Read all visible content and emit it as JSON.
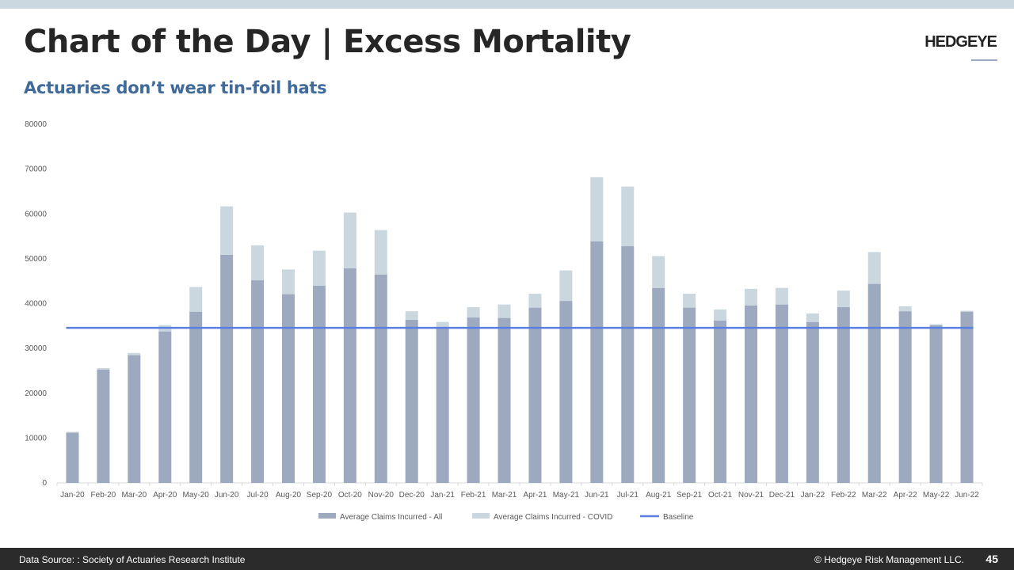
{
  "header": {
    "title": "Chart of the Day | Excess Mortality",
    "subtitle": "Actuaries don’t wear tin-foil hats",
    "logo": "HEDGEYE"
  },
  "footer": {
    "source": "Data Source: : Society of Actuaries Research Institute",
    "copyright": "© Hedgeye Risk Management LLC.",
    "page": "45"
  },
  "chart_data": {
    "type": "bar",
    "stacked": true,
    "title": "",
    "xlabel": "",
    "ylabel": "",
    "ylim": [
      0,
      80000
    ],
    "yticks": [
      0,
      10000,
      20000,
      30000,
      40000,
      50000,
      60000,
      70000,
      80000
    ],
    "grid": false,
    "legend": "bottom",
    "categories": [
      "Jan-20",
      "Feb-20",
      "Mar-20",
      "Apr-20",
      "May-20",
      "Jun-20",
      "Jul-20",
      "Aug-20",
      "Sep-20",
      "Oct-20",
      "Nov-20",
      "Dec-20",
      "Jan-21",
      "Feb-21",
      "Mar-21",
      "Apr-21",
      "May-21",
      "Jun-21",
      "Jul-21",
      "Aug-21",
      "Sep-21",
      "Oct-21",
      "Nov-21",
      "Dec-21",
      "Jan-22",
      "Feb-22",
      "Mar-22",
      "Apr-22",
      "May-22",
      "Jun-22"
    ],
    "series": [
      {
        "name": "Average Claims Incurred - All",
        "color": "#9da9bf",
        "values": [
          11200,
          25300,
          28500,
          33800,
          38200,
          50900,
          45200,
          42100,
          44000,
          47900,
          46500,
          36400,
          34700,
          36900,
          36800,
          39100,
          40600,
          53900,
          52800,
          43500,
          39100,
          36200,
          39600,
          39800,
          35900,
          39200,
          44400,
          38300,
          35200,
          38200
        ]
      },
      {
        "name": "Average Claims Incurred - COVID",
        "color": "#cad7df",
        "values": [
          200,
          300,
          500,
          1400,
          5500,
          10800,
          7800,
          5500,
          7800,
          12400,
          9900,
          1900,
          1200,
          2300,
          3000,
          3100,
          6800,
          14300,
          13300,
          7100,
          3100,
          2500,
          3700,
          3700,
          1900,
          3700,
          7100,
          1100,
          200,
          200
        ]
      },
      {
        "name": "Baseline",
        "type": "line",
        "color": "#5b7fe0",
        "value": 34600
      }
    ]
  }
}
